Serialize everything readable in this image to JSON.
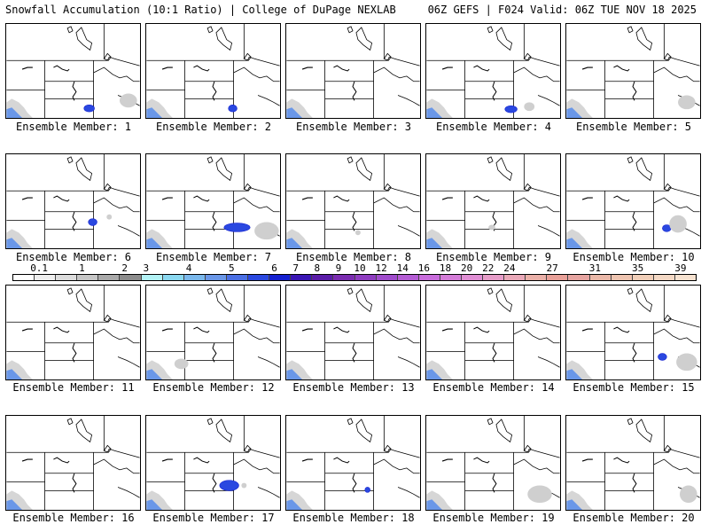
{
  "header": {
    "left": "Snowfall Accumulation (10:1 Ratio) | College of DuPage NEXLAB",
    "right": "06Z GEFS | F024 Valid: 06Z TUE NOV 18 2025"
  },
  "member_prefix": "Ensemble Member: ",
  "members": [
    1,
    2,
    3,
    4,
    5,
    6,
    7,
    8,
    9,
    10,
    11,
    12,
    13,
    14,
    15,
    16,
    17,
    18,
    19,
    20
  ],
  "colorbar": {
    "labels": [
      "0.1",
      "1",
      "2",
      "3",
      "4",
      "5",
      "6",
      "7",
      "8",
      "9",
      "10",
      "12",
      "14",
      "16",
      "18",
      "20",
      "22",
      "24",
      "27",
      "31",
      "35",
      "39"
    ],
    "colors": [
      "#ffffff",
      "#eeeeee",
      "#dcdcdc",
      "#c6c6c6",
      "#a9a9a9",
      "#8c8c8c",
      "#b2f2f5",
      "#8ad8f0",
      "#7ab8ec",
      "#6a97e8",
      "#4a6fe4",
      "#2a48e0",
      "#1420d0",
      "#3a16b4",
      "#5a1ca8",
      "#7a2cb0",
      "#8e3cc0",
      "#a04ccc",
      "#b45cd4",
      "#c86cdc",
      "#d47cd8",
      "#e08ed4",
      "#e69cc8",
      "#e9a8b8",
      "#eab0a8",
      "#e8a098",
      "#e6a4a0",
      "#eab8a8",
      "#eec4b0",
      "#f0ceb8",
      "#f3d8c4",
      "#f6e2d0"
    ]
  },
  "snow_blobs": {
    "1": [
      [
        "blue",
        95,
        97,
        6,
        4
      ],
      [
        "gray",
        140,
        88,
        10,
        8
      ]
    ],
    "2": [
      [
        "blue",
        99,
        97,
        5,
        4
      ]
    ],
    "3": [],
    "4": [
      [
        "blue",
        97,
        98,
        7,
        4
      ],
      [
        "gray",
        118,
        95,
        6,
        5
      ]
    ],
    "5": [
      [
        "gray",
        138,
        90,
        10,
        8
      ]
    ],
    "6": [
      [
        "blue",
        99,
        78,
        5,
        4
      ],
      [
        "gray",
        118,
        72,
        3,
        3
      ]
    ],
    "7": [
      [
        "blue",
        104,
        84,
        15,
        5
      ],
      [
        "gray",
        138,
        88,
        14,
        10
      ]
    ],
    "8": [
      [
        "gray",
        82,
        90,
        3,
        3
      ]
    ],
    "9": [
      [
        "gray",
        75,
        84,
        4,
        3
      ]
    ],
    "10": [
      [
        "blue",
        115,
        85,
        5,
        4
      ],
      [
        "gray",
        128,
        80,
        10,
        10
      ]
    ],
    "11": [],
    "12": [
      [
        "gray",
        40,
        90,
        8,
        6
      ]
    ],
    "13": [],
    "14": [],
    "15": [
      [
        "blue",
        110,
        82,
        5,
        4
      ],
      [
        "gray",
        138,
        88,
        12,
        10
      ]
    ],
    "16": [],
    "17": [
      [
        "blue",
        95,
        80,
        11,
        6
      ],
      [
        "gray",
        112,
        80,
        3,
        3
      ]
    ],
    "18": [
      [
        "blue",
        93,
        85,
        3,
        3
      ]
    ],
    "19": [
      [
        "gray",
        130,
        90,
        14,
        10
      ]
    ],
    "20": [
      [
        "gray",
        140,
        90,
        10,
        10
      ]
    ]
  }
}
